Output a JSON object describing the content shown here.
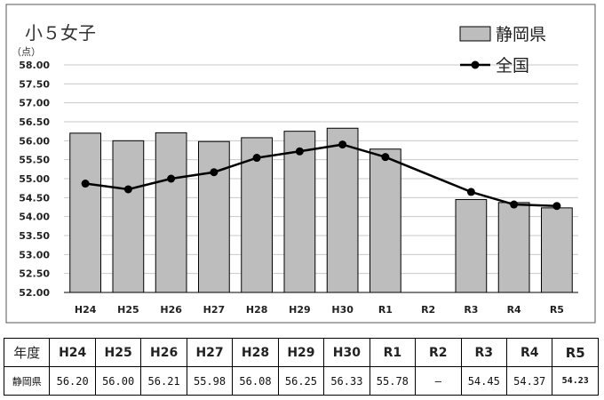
{
  "chart_data": {
    "type": "bar",
    "title": "小５女子",
    "unit_label": "（点）",
    "categories": [
      "H24",
      "H25",
      "H26",
      "H27",
      "H28",
      "H29",
      "H30",
      "R1",
      "R2",
      "R3",
      "R4",
      "R5"
    ],
    "series": [
      {
        "name": "静岡県",
        "kind": "bar",
        "values": [
          56.2,
          56.0,
          56.21,
          55.98,
          56.08,
          56.25,
          56.33,
          55.78,
          null,
          54.45,
          54.37,
          54.23
        ]
      },
      {
        "name": "全国",
        "kind": "line",
        "values": [
          54.87,
          54.72,
          55.0,
          55.17,
          55.55,
          55.72,
          55.9,
          55.57,
          null,
          54.65,
          54.32,
          54.28
        ]
      }
    ],
    "ylim": [
      52.0,
      58.0
    ],
    "yticks": [
      "52.00",
      "52.50",
      "53.00",
      "53.50",
      "54.00",
      "54.50",
      "55.00",
      "55.50",
      "56.00",
      "56.50",
      "57.00",
      "57.50",
      "58.00"
    ],
    "legend_position": "top-right",
    "grid": true,
    "colors": {
      "bar_fill": "#bdbdbd",
      "bar_stroke": "#000000",
      "line": "#000000",
      "grid": "#c8c8c8"
    }
  },
  "table": {
    "header_label": "年度",
    "row_label": "静岡県",
    "years": [
      "H24",
      "H25",
      "H26",
      "H27",
      "H28",
      "H29",
      "H30",
      "R1",
      "R2",
      "R3",
      "R4",
      "R5"
    ],
    "values": [
      "56.20",
      "56.00",
      "56.21",
      "55.98",
      "56.08",
      "56.25",
      "56.33",
      "55.78",
      "―",
      "54.45",
      "54.37",
      "54.23"
    ]
  }
}
